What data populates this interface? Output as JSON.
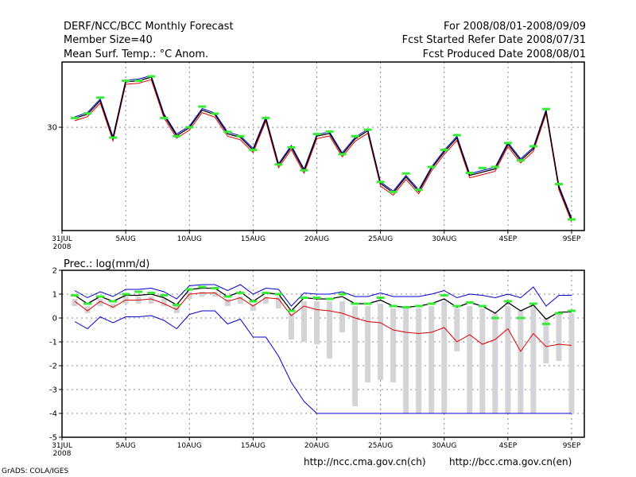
{
  "header": {
    "title": "DERF/NCC/BCC Monthly Forecast",
    "member_size": "Member Size=40",
    "variable": "Mean Surf. Temp.: °C Anom.",
    "period": "For 2008/08/01-2008/09/09",
    "started": "Fcst Started Refer Date 2008/07/31",
    "produced": "Fcst Produced Date 2008/08/01"
  },
  "footer": {
    "url_ncc": "http://ncc.cma.gov.cn(ch)",
    "url_bcc": "http://bcc.cma.gov.cn(en)",
    "credit": "GrADS: COLA/IGES"
  },
  "colors": {
    "mean": "#000000",
    "upper": "#0000cc",
    "lower": "#dd0000",
    "marker": "#33ee33",
    "bar": "#d4d4d8",
    "grid": "#888888"
  },
  "chart_data": [
    {
      "type": "line",
      "title": "Mean Surf. Temp.: °C Anom.",
      "x": [
        1,
        2,
        3,
        4,
        5,
        6,
        7,
        8,
        9,
        10,
        11,
        12,
        13,
        14,
        15,
        16,
        17,
        18,
        19,
        20,
        21,
        22,
        23,
        24,
        25,
        26,
        27,
        28,
        29,
        30,
        31,
        32,
        33,
        34,
        35,
        36,
        37,
        38,
        39,
        40
      ],
      "x_ticks": [
        {
          "day": 0,
          "label": "31JUL",
          "sub": "2008"
        },
        {
          "day": 5,
          "label": "5AUG"
        },
        {
          "day": 10,
          "label": "10AUG"
        },
        {
          "day": 15,
          "label": "15AUG"
        },
        {
          "day": 20,
          "label": "20AUG"
        },
        {
          "day": 25,
          "label": "25AUG"
        },
        {
          "day": 30,
          "label": "30AUG"
        },
        {
          "day": 35,
          "label": "4SEP"
        },
        {
          "day": 40,
          "label": "9SEP"
        }
      ],
      "y_ticks": [
        30
      ],
      "ylim": [
        26.2,
        32.4
      ],
      "series": [
        {
          "name": "mean",
          "values": [
            30.33,
            30.48,
            30.98,
            29.59,
            31.67,
            31.71,
            31.84,
            30.44,
            29.69,
            29.98,
            30.63,
            30.46,
            29.76,
            29.63,
            29.16,
            30.31,
            28.6,
            29.27,
            28.4,
            29.67,
            29.77,
            29.0,
            29.57,
            29.87,
            27.93,
            27.59,
            28.17,
            27.64,
            28.48,
            29.09,
            29.61,
            28.23,
            28.35,
            28.47,
            29.38,
            28.78,
            29.2,
            30.59,
            27.79,
            26.6
          ]
        },
        {
          "name": "upper",
          "values": [
            30.38,
            30.54,
            31.04,
            29.65,
            31.73,
            31.77,
            31.9,
            30.5,
            29.75,
            30.04,
            30.69,
            30.52,
            29.82,
            29.69,
            29.22,
            30.37,
            28.66,
            29.33,
            28.46,
            29.73,
            29.83,
            29.06,
            29.63,
            29.93,
            27.99,
            27.65,
            28.23,
            27.7,
            28.54,
            29.15,
            29.67,
            28.29,
            28.41,
            28.53,
            29.44,
            28.84,
            29.26,
            30.65,
            27.85,
            26.66
          ]
        },
        {
          "name": "lower",
          "values": [
            30.24,
            30.39,
            30.89,
            29.5,
            31.58,
            31.62,
            31.75,
            30.35,
            29.6,
            29.89,
            30.54,
            30.37,
            29.67,
            29.54,
            29.07,
            30.22,
            28.51,
            29.18,
            28.31,
            29.58,
            29.68,
            28.91,
            29.48,
            29.78,
            27.84,
            27.5,
            28.08,
            27.55,
            28.39,
            29.0,
            29.52,
            28.14,
            28.26,
            28.38,
            29.29,
            28.69,
            29.11,
            30.5,
            27.7,
            26.51
          ]
        },
        {
          "name": "marker",
          "values": [
            30.34,
            30.51,
            31.09,
            29.62,
            31.71,
            31.71,
            31.87,
            30.34,
            29.67,
            30.0,
            30.76,
            30.5,
            29.83,
            29.67,
            29.17,
            30.34,
            28.63,
            29.26,
            28.42,
            29.75,
            29.84,
            29.01,
            29.67,
            29.91,
            27.99,
            27.62,
            28.3,
            27.7,
            28.54,
            29.17,
            29.71,
            28.32,
            28.5,
            28.54,
            29.42,
            28.78,
            29.3,
            30.67,
            27.91,
            26.61
          ]
        }
      ]
    },
    {
      "type": "line",
      "title": "Prec.: log(mm/d)",
      "x": [
        1,
        2,
        3,
        4,
        5,
        6,
        7,
        8,
        9,
        10,
        11,
        12,
        13,
        14,
        15,
        16,
        17,
        18,
        19,
        20,
        21,
        22,
        23,
        24,
        25,
        26,
        27,
        28,
        29,
        30,
        31,
        32,
        33,
        34,
        35,
        36,
        37,
        38,
        39,
        40
      ],
      "x_ticks": [
        {
          "day": 0,
          "label": "31JUL",
          "sub": "2008"
        },
        {
          "day": 5,
          "label": "5AUG"
        },
        {
          "day": 10,
          "label": "10AUG"
        },
        {
          "day": 15,
          "label": "15AUG"
        },
        {
          "day": 20,
          "label": "20AUG"
        },
        {
          "day": 25,
          "label": "25AUG"
        },
        {
          "day": 30,
          "label": "30AUG"
        },
        {
          "day": 35,
          "label": "4SEP"
        },
        {
          "day": 40,
          "label": "9SEP"
        }
      ],
      "y_ticks": [
        2,
        1,
        0,
        -1,
        -2,
        -3,
        -4,
        -5
      ],
      "ylim": [
        -5,
        2
      ],
      "series": [
        {
          "name": "mean",
          "values": [
            0.95,
            0.6,
            0.9,
            0.7,
            0.95,
            0.95,
            1.0,
            0.85,
            0.55,
            1.2,
            1.25,
            1.25,
            0.9,
            1.1,
            0.7,
            1.05,
            1.0,
            0.3,
            0.85,
            0.8,
            0.8,
            0.9,
            0.6,
            0.6,
            0.75,
            0.5,
            0.45,
            0.5,
            0.6,
            0.8,
            0.45,
            0.65,
            0.5,
            0.2,
            0.65,
            0.3,
            0.55,
            -0.05,
            0.25,
            0.25
          ]
        },
        {
          "name": "upper",
          "values": [
            1.15,
            0.85,
            1.1,
            0.9,
            1.2,
            1.2,
            1.25,
            1.1,
            0.8,
            1.35,
            1.4,
            1.4,
            1.15,
            1.4,
            1.0,
            1.25,
            1.2,
            0.5,
            1.05,
            1.0,
            1.0,
            1.1,
            0.9,
            0.9,
            1.05,
            0.9,
            0.9,
            0.9,
            1.0,
            1.15,
            0.85,
            1.0,
            0.95,
            0.85,
            1.0,
            0.85,
            1.3,
            0.5,
            0.95,
            0.95
          ]
        },
        {
          "name": "lower",
          "values": [
            0.7,
            0.3,
            0.7,
            0.45,
            0.75,
            0.75,
            0.8,
            0.6,
            0.35,
            1.0,
            1.05,
            1.05,
            0.7,
            0.85,
            0.5,
            0.85,
            0.8,
            0.1,
            0.5,
            0.35,
            0.3,
            0.2,
            0.0,
            -0.15,
            -0.2,
            -0.5,
            -0.6,
            -0.65,
            -0.6,
            -0.4,
            -1.0,
            -0.7,
            -1.1,
            -0.9,
            -0.45,
            -1.4,
            -0.65,
            -1.2,
            -1.1,
            -1.15
          ]
        },
        {
          "name": "spread_low",
          "values": [
            -0.15,
            -0.45,
            0.05,
            -0.2,
            0.05,
            0.05,
            0.1,
            -0.1,
            -0.45,
            0.15,
            0.3,
            0.3,
            -0.25,
            -0.05,
            -0.8,
            -0.8,
            -1.6,
            -2.7,
            -3.5,
            -4.0,
            -4.0,
            -4.0,
            -4.0,
            -4.0,
            -4.0,
            -4.0,
            -4.0,
            -4.0,
            -4.0,
            -4.0,
            -4.0,
            -4.0,
            -4.0,
            -4.0,
            -4.0,
            -4.0,
            -4.0,
            -4.0,
            -4.0,
            -4.0
          ]
        },
        {
          "name": "marker",
          "values": [
            0.95,
            0.6,
            0.9,
            0.7,
            1.0,
            1.1,
            1.05,
            0.95,
            0.55,
            1.2,
            1.3,
            1.25,
            0.9,
            1.05,
            0.7,
            1.05,
            1.0,
            0.3,
            0.85,
            0.85,
            0.8,
            1.0,
            0.6,
            0.6,
            0.85,
            0.5,
            0.45,
            0.5,
            0.6,
            0.95,
            0.5,
            0.65,
            0.5,
            0.0,
            0.7,
            0.0,
            0.6,
            -0.25,
            0.2,
            0.3
          ]
        },
        {
          "name": "box_top",
          "values": [
            0.8,
            0.5,
            0.8,
            0.6,
            0.9,
            0.9,
            0.9,
            0.8,
            0.5,
            1.1,
            1.1,
            1.1,
            0.8,
            0.9,
            0.6,
            0.9,
            0.9,
            0.2,
            0.7,
            0.7,
            0.7,
            0.7,
            0.5,
            0.5,
            0.6,
            0.4,
            0.4,
            0.4,
            0.5,
            0.7,
            0.4,
            0.5,
            0.4,
            0.2,
            0.5,
            0.3,
            0.5,
            0.0,
            0.2,
            0.2
          ]
        },
        {
          "name": "box_bottom",
          "values": [
            0.5,
            0.2,
            0.5,
            0.4,
            0.6,
            0.6,
            0.6,
            0.5,
            0.2,
            0.8,
            0.9,
            0.9,
            0.5,
            0.6,
            0.3,
            0.6,
            0.4,
            -0.9,
            -1.0,
            -1.1,
            -1.7,
            -0.6,
            -3.7,
            -2.7,
            -2.6,
            -2.7,
            -4.0,
            -4.0,
            -4.0,
            -4.0,
            -1.4,
            -4.0,
            -4.0,
            -4.0,
            -4.0,
            -4.0,
            -4.0,
            -1.9,
            -1.8,
            -4.0
          ]
        }
      ]
    }
  ]
}
